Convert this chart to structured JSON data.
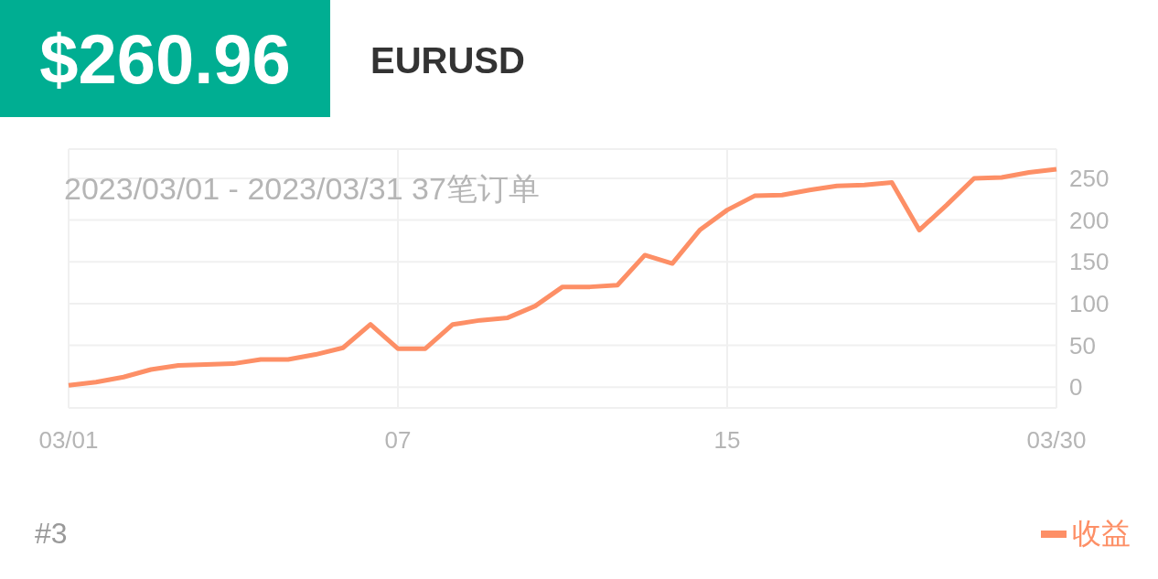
{
  "chart_data": {
    "type": "line",
    "title": "$260.96",
    "subtitle": "EURUSD",
    "annotations": [
      "2023/03/01 - 2023/03/31  37笔订单",
      "#3"
    ],
    "categories": [
      "03/01",
      null,
      null,
      null,
      null,
      null,
      null,
      null,
      null,
      null,
      null,
      null,
      "07",
      null,
      null,
      null,
      null,
      null,
      null,
      null,
      null,
      null,
      null,
      null,
      "15",
      null,
      null,
      null,
      null,
      null,
      null,
      null,
      null,
      null,
      null,
      null,
      "03/30"
    ],
    "series": [
      {
        "name": "收益",
        "color": "#fd8f66",
        "values": [
          2,
          6,
          12,
          21,
          26,
          27,
          28,
          33,
          33,
          39,
          47,
          75,
          46,
          46,
          75,
          80,
          83,
          97,
          120,
          120,
          122,
          158,
          148,
          188,
          212,
          229,
          230,
          236,
          241,
          242,
          245,
          188,
          218,
          250,
          251,
          257,
          261
        ]
      }
    ],
    "ylim": [
      -25,
      285
    ],
    "yticks": [
      0,
      50,
      100,
      150,
      200,
      250
    ],
    "grid": true,
    "legend": "bottom right",
    "marker": "none",
    "line_style": "solid"
  }
}
